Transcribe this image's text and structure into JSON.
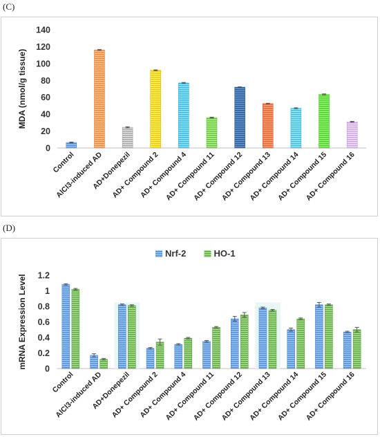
{
  "panel_c_label": "(C)",
  "panel_d_label": "(D)",
  "chart_data": [
    {
      "type": "bar",
      "ylabel": "MDA (nmol/g tissue)",
      "ylim": [
        0,
        140
      ],
      "yticks": [
        0,
        20,
        40,
        60,
        80,
        100,
        120,
        140
      ],
      "grid": false,
      "categories": [
        "Control",
        "AlCl3-induced AD",
        "AD+Donepezil",
        "AD+ Compound 2",
        "AD+ Compound 4",
        "AD+ Compound 11",
        "AD+ Compound 12",
        "AD+ Compound 13",
        "AD+ Compound 14",
        "AD+ Compound 15",
        "AD+ Compound 16"
      ],
      "values": [
        6.5,
        116,
        24.5,
        92,
        77,
        36,
        72,
        52.5,
        47,
        63.5,
        31
      ],
      "errors": [
        0.5,
        0.6,
        0.6,
        0.5,
        0.6,
        0.5,
        0.4,
        0.5,
        0.6,
        0.5,
        0.5
      ],
      "colors": [
        "#5b8fd6",
        "#f08a4b",
        "#a8a8a8",
        "#f2c21b",
        "#4bb3e6",
        "#6fbf4a",
        "#2f5f99",
        "#e8683a",
        "#52b7dd",
        "#55cc33",
        "#c9a6e8"
      ]
    },
    {
      "type": "bar",
      "ylabel": "mRNA Expression Level",
      "ylim": [
        0,
        1.2
      ],
      "yticks": [
        0,
        0.2,
        0.4,
        0.6,
        0.8,
        1,
        1.2
      ],
      "grid": false,
      "legend": "top",
      "categories": [
        "Control",
        "AlCl3-induced AD",
        "AD+Donepezil",
        "AD+ Compound 2",
        "AD+ Compound 4",
        "AD+ Compound 11",
        "AD+ Compound 12",
        "AD+ Compound 13",
        "AD+ Compound 14",
        "AD+ Compound 15",
        "AD+ Compound 16"
      ],
      "series": [
        {
          "name": "Nrf-2",
          "color": "#5b8fd6",
          "values": [
            1.08,
            0.17,
            0.82,
            0.26,
            0.31,
            0.35,
            0.64,
            0.78,
            0.5,
            0.82,
            0.47
          ],
          "errors": [
            0.01,
            0.02,
            0.01,
            0.01,
            0.01,
            0.01,
            0.03,
            0.01,
            0.02,
            0.03,
            0.01
          ]
        },
        {
          "name": "HO-1",
          "color": "#6aa84f",
          "values": [
            1.02,
            0.12,
            0.81,
            0.34,
            0.39,
            0.53,
            0.69,
            0.75,
            0.64,
            0.82,
            0.5
          ],
          "errors": [
            0.01,
            0.01,
            0.01,
            0.04,
            0.01,
            0.01,
            0.03,
            0.01,
            0.01,
            0.01,
            0.03
          ]
        }
      ]
    }
  ]
}
